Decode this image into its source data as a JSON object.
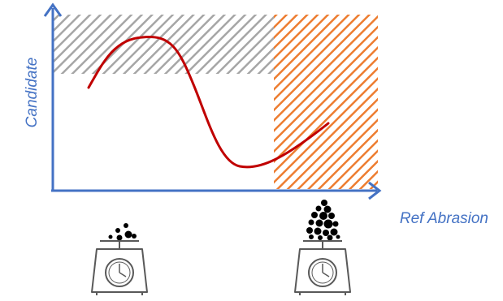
{
  "diagram": {
    "y_axis_label": "Candidate",
    "x_axis_label": "Ref Abrasion",
    "colors": {
      "axis": "#4472c4",
      "curve": "#c00000",
      "grey_hatch": "#a6a6a6",
      "orange_hatch": "#ed7d31",
      "scale_outline": "#595959",
      "particles": "#000000"
    },
    "icons": {
      "left_scale": "kitchen-scale-icon",
      "right_scale": "kitchen-scale-icon"
    }
  }
}
